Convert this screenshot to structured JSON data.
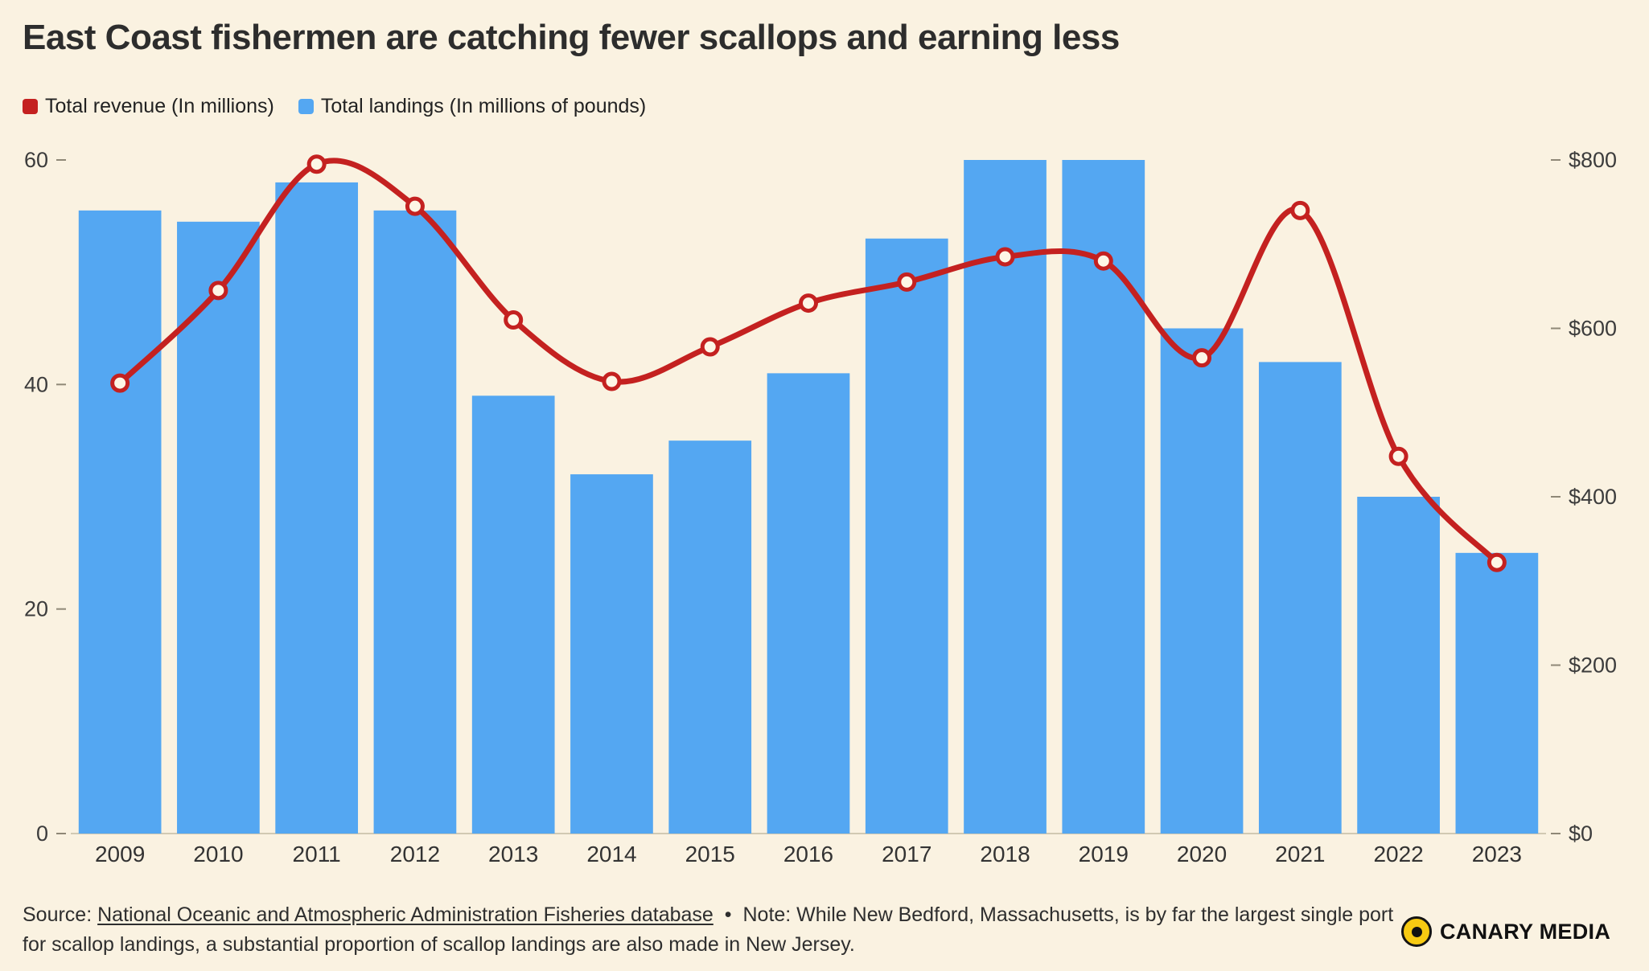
{
  "title": "East Coast fishermen are catching fewer scallops and earning less",
  "legend": {
    "revenue": {
      "label": "Total revenue (In millions)",
      "color": "#c42120"
    },
    "landings": {
      "label": "Total landings (In millions of pounds)",
      "color": "#54a7f2"
    }
  },
  "chart_data": {
    "type": "bar+line",
    "title": "East Coast fishermen are catching fewer scallops and earning less",
    "categories": [
      "2009",
      "2010",
      "2011",
      "2012",
      "2013",
      "2014",
      "2015",
      "2016",
      "2017",
      "2018",
      "2019",
      "2020",
      "2021",
      "2022",
      "2023"
    ],
    "series": [
      {
        "name": "Total landings (In millions of pounds)",
        "type": "bar",
        "axis": "left",
        "color": "#54a7f2",
        "values": [
          55.5,
          54.5,
          58,
          55.5,
          39,
          32,
          35,
          41,
          53,
          60,
          60,
          45,
          42,
          30,
          25
        ]
      },
      {
        "name": "Total revenue (In millions)",
        "type": "line",
        "axis": "right",
        "color": "#c42120",
        "marker_fill": "#fdf6e6",
        "values": [
          535,
          645,
          795,
          745,
          610,
          537,
          578,
          630,
          655,
          685,
          680,
          565,
          740,
          448,
          322
        ]
      }
    ],
    "left_axis": {
      "ticks": [
        0,
        20,
        40,
        60
      ],
      "range": [
        0,
        60
      ]
    },
    "right_axis": {
      "values": [
        0,
        200,
        400,
        600,
        800
      ],
      "labels": [
        "$0",
        "$200",
        "$400",
        "$600",
        "$800"
      ],
      "range": [
        0,
        800
      ]
    },
    "grid": false,
    "legend_position": "top-left"
  },
  "footer": {
    "source_prefix": "Source:",
    "source_link": "National Oceanic and Atmospheric Administration Fisheries database",
    "separator": "•",
    "note": "Note: While New Bedford, Massachusetts, is by far the largest single port for scallop landings, a substantial proportion of scallop landings are also made in New Jersey.",
    "brand": "CANARY MEDIA"
  }
}
